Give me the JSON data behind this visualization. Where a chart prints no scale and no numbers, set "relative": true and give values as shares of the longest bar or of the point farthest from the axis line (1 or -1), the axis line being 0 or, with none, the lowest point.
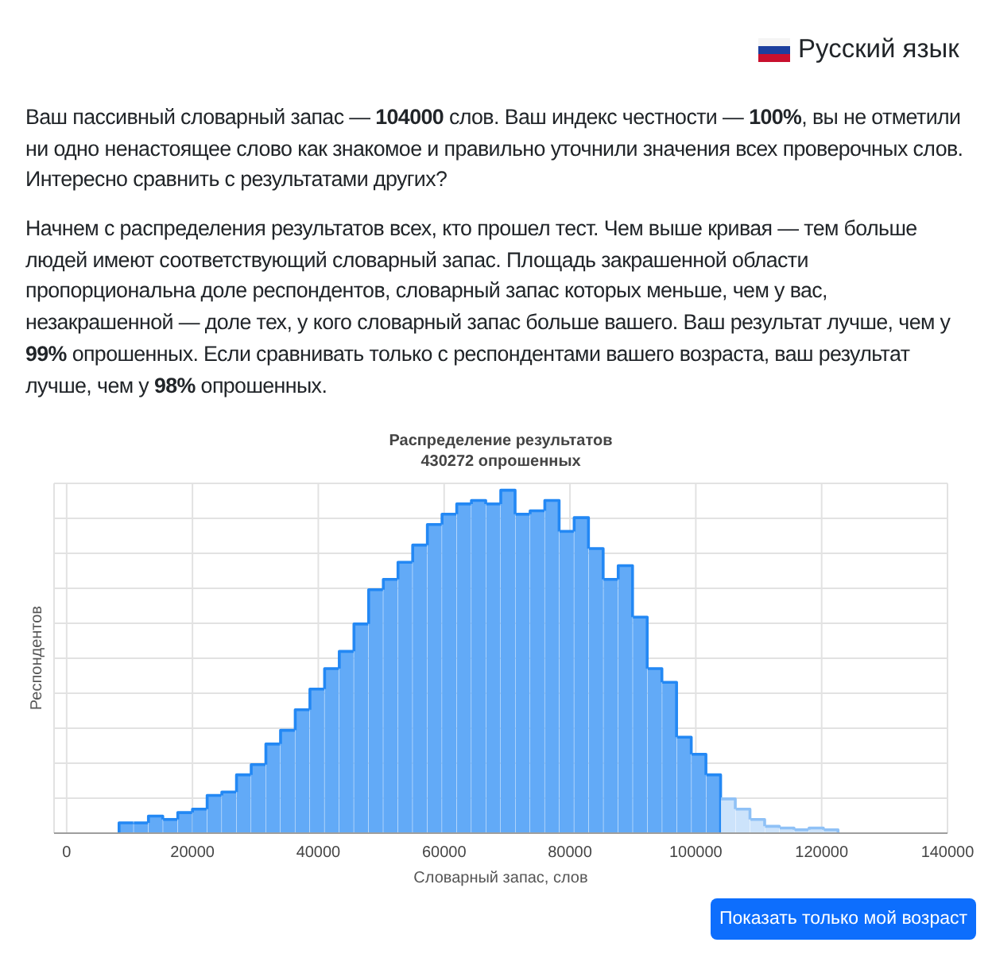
{
  "chart_data": {
    "type": "bar",
    "title": "Распределение результатов",
    "subtitle": "430272 опрошенных",
    "xlabel": "Словарный запас, слов",
    "ylabel": "Респондентов",
    "relative": true,
    "x": [
      9500,
      11833,
      14167,
      16500,
      18833,
      21167,
      23500,
      25833,
      28167,
      30500,
      32833,
      35167,
      37500,
      39833,
      42167,
      44500,
      46833,
      49167,
      51500,
      53833,
      56167,
      58500,
      60833,
      63167,
      65500,
      67833,
      70167,
      72500,
      74833,
      77167,
      79500,
      81833,
      84167,
      86500,
      88833,
      91167,
      93500,
      95833,
      98167,
      100500,
      102833,
      105167,
      107500,
      109833,
      112167,
      114500,
      116833,
      119167,
      121500
    ],
    "values": [
      0.03,
      0.03,
      0.05,
      0.04,
      0.06,
      0.07,
      0.11,
      0.12,
      0.17,
      0.2,
      0.26,
      0.3,
      0.36,
      0.42,
      0.48,
      0.53,
      0.61,
      0.71,
      0.74,
      0.79,
      0.84,
      0.9,
      0.93,
      0.96,
      0.97,
      0.96,
      1,
      0.93,
      0.94,
      0.97,
      0.88,
      0.92,
      0.83,
      0.74,
      0.78,
      0.63,
      0.48,
      0.44,
      0.28,
      0.23,
      0.17,
      0.1,
      0.07,
      0.04,
      0.02,
      0.015,
      0.01,
      0.015,
      0.01
    ],
    "colors": [
      "#62aaf7",
      "#62aaf7",
      "#62aaf7",
      "#62aaf7",
      "#62aaf7",
      "#62aaf7",
      "#62aaf7",
      "#62aaf7",
      "#62aaf7",
      "#62aaf7",
      "#62aaf7",
      "#62aaf7",
      "#62aaf7",
      "#62aaf7",
      "#62aaf7",
      "#62aaf7",
      "#62aaf7",
      "#62aaf7",
      "#62aaf7",
      "#62aaf7",
      "#62aaf7",
      "#62aaf7",
      "#62aaf7",
      "#62aaf7",
      "#62aaf7",
      "#62aaf7",
      "#62aaf7",
      "#62aaf7",
      "#62aaf7",
      "#62aaf7",
      "#62aaf7",
      "#62aaf7",
      "#62aaf7",
      "#62aaf7",
      "#62aaf7",
      "#62aaf7",
      "#62aaf7",
      "#62aaf7",
      "#62aaf7",
      "#62aaf7",
      "#62aaf7",
      "#cce3fb",
      "#cce3fb",
      "#cce3fb",
      "#cce3fb",
      "#cce3fb",
      "#cce3fb",
      "#cce3fb",
      "#cce3fb"
    ],
    "xlim": [
      -2000,
      140000
    ],
    "xticks": [
      0,
      20000,
      40000,
      60000,
      80000,
      100000,
      120000,
      140000
    ],
    "grid": true,
    "annotations": [
      "Ваш пассивный словарный запас — 104000 слов. Ваш индекс честности — 100%, вы не отметили ни одно ненастоящее слово как знакомое и правильно уточнили значения всех проверочных слов. Интересно сравнить с результатами других?",
      "Начнем с распределения результатов всех, кто прошел тест. Чем выше кривая — тем больше людей имеют соответствующий словарный запас. Площадь закрашенной области пропорциональна доле респондентов, словарный запас которых меньше, чем у вас, незакрашенной — доле тех, у кого словарный запас больше вашего. Ваш результат лучше, чем у 99% опрошенных. Если сравнивать только с респондентами вашего возраста, ваш результат лучше, чем у 98% опрошенных.",
      "Русский язык",
      "Показать только мой возраст"
    ]
  }
}
